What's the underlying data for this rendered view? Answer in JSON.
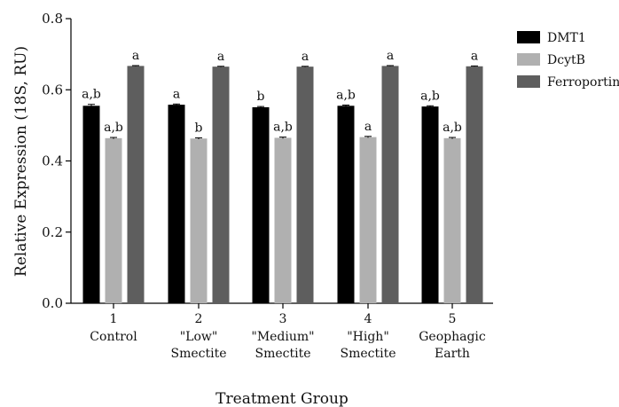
{
  "chart_data": {
    "type": "bar",
    "xlabel": "Treatment Group",
    "ylabel": "Relative Expression (18S, RU)",
    "ylim": [
      0,
      0.8
    ],
    "yticks": [
      "0.0",
      "0.2",
      "0.4",
      "0.6",
      "0.8"
    ],
    "grid": false,
    "legend_position": "right",
    "categories": [
      {
        "number": "1",
        "line1": "Control",
        "line2": ""
      },
      {
        "number": "2",
        "line1": "\"Low\"",
        "line2": "Smectite"
      },
      {
        "number": "3",
        "line1": "\"Medium\"",
        "line2": "Smectite"
      },
      {
        "number": "4",
        "line1": "\"High\"",
        "line2": "Smectite"
      },
      {
        "number": "5",
        "line1": "Geophagic",
        "line2": "Earth"
      }
    ],
    "series": [
      {
        "name": "DMT1",
        "color": "#000000",
        "values": [
          0.555,
          0.558,
          0.551,
          0.555,
          0.553
        ],
        "errors": [
          0.004,
          0.002,
          0.002,
          0.002,
          0.002
        ],
        "labels": [
          "a,b",
          "a",
          "b",
          "a,b",
          "a,b"
        ]
      },
      {
        "name": "DcytB",
        "color": "#b0b0b0",
        "values": [
          0.464,
          0.463,
          0.465,
          0.467,
          0.464
        ],
        "errors": [
          0.002,
          0.002,
          0.002,
          0.002,
          0.002
        ],
        "labels": [
          "a,b",
          "b",
          "a,b",
          "a",
          "a,b"
        ]
      },
      {
        "name": "Ferroportin",
        "color": "#5e5e5e",
        "values": [
          0.667,
          0.665,
          0.665,
          0.667,
          0.666
        ],
        "errors": [
          0.001,
          0.001,
          0.001,
          0.001,
          0.001
        ],
        "labels": [
          "a",
          "a",
          "a",
          "a",
          "a"
        ]
      }
    ]
  }
}
